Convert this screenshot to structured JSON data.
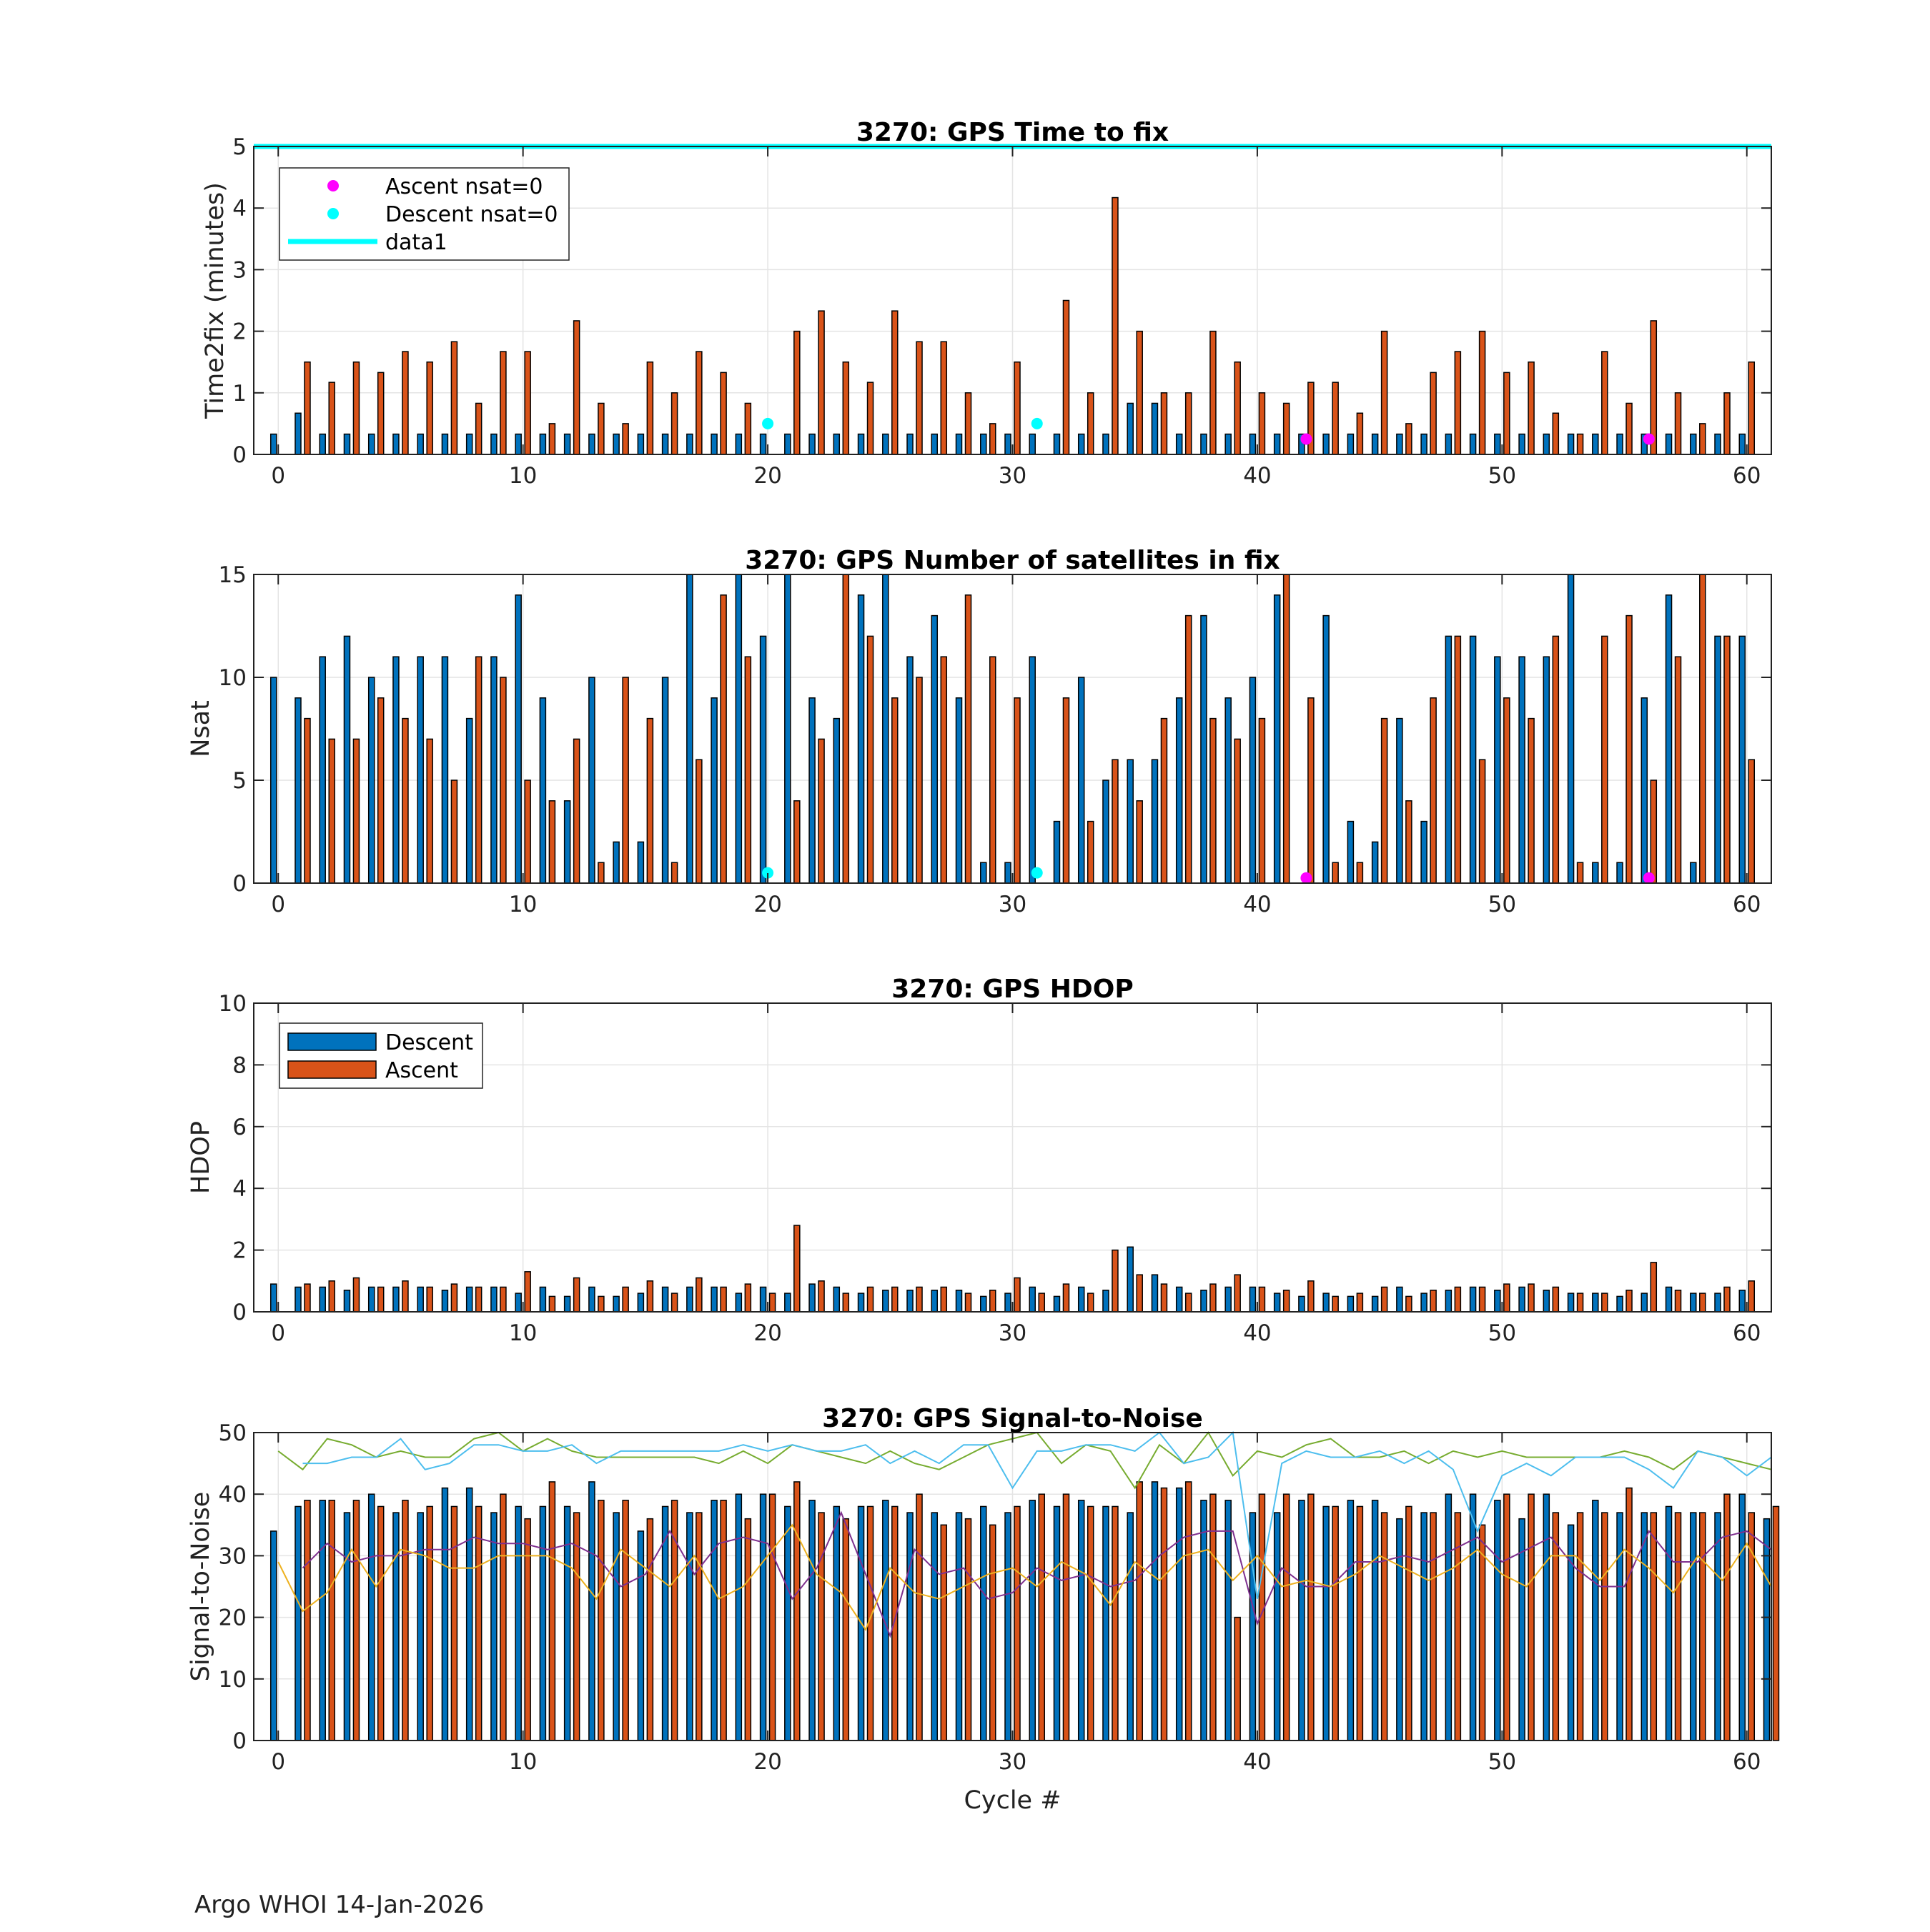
{
  "footer": "Argo WHOI 14-Jan-2026",
  "colors": {
    "descent": "#0072BD",
    "ascent": "#D95319",
    "cyan": "#00FFFF",
    "magenta": "#FF00FF",
    "green": "#77AC30",
    "lightblue": "#4DBEEE",
    "purple": "#7E2F8E",
    "yellow": "#EDB120"
  },
  "chart_data": [
    {
      "type": "bar",
      "title": "3270: GPS Time to fix",
      "xlabel": "",
      "ylabel": "Time2fix (minutes)",
      "xlim": [
        -1,
        61
      ],
      "ylim": [
        0,
        5
      ],
      "xticks": [
        0,
        10,
        20,
        30,
        40,
        50,
        60
      ],
      "yticks": [
        0,
        1,
        2,
        3,
        4,
        5
      ],
      "grid": true,
      "legend_position": "top-left",
      "legend": [
        "Ascent nsat=0",
        "Descent nsat=0",
        "data1"
      ],
      "hline": {
        "name": "data1",
        "y": 5
      },
      "series": [
        {
          "name": "Descent",
          "values": [
            0.33,
            0.67,
            0.33,
            0.33,
            0.33,
            0.33,
            0.33,
            0.33,
            0.33,
            0.33,
            0.33,
            0.33,
            0.33,
            0.33,
            0.33,
            0.33,
            0.33,
            0.33,
            0.33,
            0.33,
            0.33,
            0.33,
            0.33,
            0.33,
            0.33,
            0.33,
            0.33,
            0.33,
            0.33,
            0.33,
            0.33,
            0.33,
            0.33,
            0.33,
            0.33,
            0.83,
            0.83,
            0.33,
            0.33,
            0.33,
            0.33,
            0.33,
            0.33,
            0.33,
            0.33,
            0.33,
            0.33,
            0.33,
            0.33,
            0.33,
            0.33,
            0.33,
            0.33,
            0.33,
            0.33,
            0.33,
            0.33,
            0.33,
            0.33,
            0.33,
            0.33
          ]
        },
        {
          "name": "Ascent",
          "values": [
            null,
            1.5,
            1.17,
            1.5,
            1.33,
            1.67,
            1.5,
            1.83,
            0.83,
            1.67,
            1.67,
            0.5,
            2.17,
            0.83,
            0.5,
            1.5,
            1.0,
            1.67,
            1.33,
            0.83,
            null,
            2.0,
            2.33,
            1.5,
            1.17,
            2.33,
            1.83,
            1.83,
            1.0,
            0.5,
            1.5,
            null,
            2.5,
            1.0,
            4.17,
            2.0,
            1.0,
            1.0,
            2.0,
            1.5,
            1.0,
            0.83,
            1.17,
            1.17,
            0.67,
            2.0,
            0.5,
            1.33,
            1.67,
            2.0,
            1.33,
            1.5,
            0.67,
            0.33,
            1.67,
            0.83,
            2.17,
            1.0,
            0.5,
            1.0,
            1.5
          ]
        }
      ],
      "markers": [
        {
          "name": "Descent nsat=0",
          "points": [
            [
              20,
              0.5
            ],
            [
              31,
              0.5
            ]
          ]
        },
        {
          "name": "Ascent nsat=0",
          "points": [
            [
              42,
              0.25
            ],
            [
              56,
              0.25
            ]
          ]
        }
      ]
    },
    {
      "type": "bar",
      "title": "3270: GPS Number of satellites in fix",
      "xlabel": "",
      "ylabel": "Nsat",
      "xlim": [
        -1,
        61
      ],
      "ylim": [
        0,
        15
      ],
      "xticks": [
        0,
        10,
        20,
        30,
        40,
        50,
        60
      ],
      "yticks": [
        0,
        5,
        10,
        15
      ],
      "grid": true,
      "series": [
        {
          "name": "Descent",
          "values": [
            10,
            9,
            11,
            12,
            10,
            11,
            11,
            11,
            8,
            11,
            14,
            9,
            4,
            10,
            2,
            2,
            10,
            15,
            9,
            15,
            12,
            15,
            9,
            8,
            14,
            15,
            11,
            13,
            9,
            1,
            1,
            11,
            3,
            10,
            5,
            6,
            6,
            9,
            13,
            9,
            10,
            14,
            0,
            13,
            3,
            2,
            8,
            3,
            12,
            12,
            11,
            11,
            11,
            15,
            1,
            1,
            9,
            14,
            1,
            12,
            12
          ]
        },
        {
          "name": "Ascent",
          "values": [
            null,
            8,
            7,
            7,
            9,
            8,
            7,
            5,
            11,
            10,
            5,
            4,
            7,
            1,
            10,
            8,
            1,
            6,
            14,
            11,
            0,
            4,
            7,
            15,
            12,
            9,
            10,
            11,
            14,
            11,
            9,
            0,
            9,
            3,
            6,
            4,
            8,
            13,
            8,
            7,
            8,
            15,
            9,
            1,
            1,
            8,
            4,
            9,
            12,
            6,
            9,
            8,
            12,
            1,
            12,
            13,
            5,
            11,
            15,
            12,
            6
          ]
        }
      ],
      "markers": [
        {
          "name": "Descent nsat=0",
          "points": [
            [
              20,
              0.5
            ],
            [
              31,
              0.5
            ]
          ]
        },
        {
          "name": "Ascent nsat=0",
          "points": [
            [
              42,
              0.25
            ],
            [
              56,
              0.25
            ]
          ]
        }
      ]
    },
    {
      "type": "bar",
      "title": "3270: GPS HDOP",
      "xlabel": "",
      "ylabel": "HDOP",
      "xlim": [
        -1,
        61
      ],
      "ylim": [
        0,
        10
      ],
      "xticks": [
        0,
        10,
        20,
        30,
        40,
        50,
        60
      ],
      "yticks": [
        0,
        2,
        4,
        6,
        8,
        10
      ],
      "grid": true,
      "legend_position": "top-left",
      "legend": [
        "Descent",
        "Ascent"
      ],
      "series": [
        {
          "name": "Descent",
          "values": [
            0.9,
            0.8,
            0.8,
            0.7,
            0.8,
            0.8,
            0.8,
            0.7,
            0.8,
            0.8,
            0.6,
            0.8,
            0.5,
            0.8,
            0.5,
            0.6,
            0.8,
            0.8,
            0.8,
            0.6,
            0.8,
            0.6,
            0.9,
            0.8,
            0.6,
            0.7,
            0.7,
            0.7,
            0.7,
            0.5,
            0.6,
            0.8,
            0.5,
            0.8,
            0.7,
            2.1,
            1.2,
            0.8,
            0.7,
            0.8,
            0.8,
            0.6,
            0.5,
            0.6,
            0.5,
            0.5,
            0.8,
            0.6,
            0.7,
            0.8,
            0.7,
            0.8,
            0.7,
            0.6,
            0.6,
            0.5,
            0.6,
            0.8,
            0.6,
            0.6,
            0.7
          ]
        },
        {
          "name": "Ascent",
          "values": [
            null,
            0.9,
            1.0,
            1.1,
            0.8,
            1.0,
            0.8,
            0.9,
            0.8,
            0.8,
            1.3,
            0.5,
            1.1,
            0.5,
            0.8,
            1.0,
            0.6,
            1.1,
            0.8,
            0.9,
            0.6,
            2.8,
            1.0,
            0.6,
            0.8,
            0.8,
            0.8,
            0.8,
            0.6,
            0.7,
            1.1,
            0.6,
            0.9,
            0.6,
            2.0,
            1.2,
            0.9,
            0.6,
            0.9,
            1.2,
            0.8,
            0.7,
            1.0,
            0.5,
            0.6,
            0.8,
            0.5,
            0.7,
            0.8,
            0.8,
            0.9,
            0.9,
            0.8,
            0.6,
            0.6,
            0.7,
            1.6,
            0.7,
            0.6,
            0.8,
            1.0
          ]
        }
      ]
    },
    {
      "type": "bar",
      "title": "3270: GPS Signal-to-Noise",
      "xlabel": "Cycle #",
      "ylabel": "Signal-to-Noise",
      "xlim": [
        -1,
        61
      ],
      "ylim": [
        0,
        50
      ],
      "xticks": [
        0,
        10,
        20,
        30,
        40,
        50,
        60
      ],
      "yticks": [
        0,
        10,
        20,
        30,
        40,
        50
      ],
      "grid": true,
      "series": [
        {
          "name": "Descent",
          "values": [
            34,
            38,
            39,
            37,
            40,
            37,
            37,
            41,
            41,
            37,
            38,
            38,
            38,
            42,
            37,
            34,
            38,
            37,
            39,
            40,
            40,
            38,
            39,
            38,
            38,
            39,
            37,
            37,
            37,
            38,
            37,
            39,
            38,
            39,
            38,
            37,
            42,
            41,
            39,
            39,
            37,
            37,
            39,
            38,
            39,
            39,
            36,
            37,
            40,
            40,
            39,
            36,
            40,
            35,
            39,
            37,
            37,
            38,
            37,
            37,
            40,
            36
          ]
        },
        {
          "name": "Ascent",
          "values": [
            null,
            39,
            39,
            39,
            38,
            39,
            38,
            38,
            38,
            40,
            36,
            42,
            37,
            39,
            39,
            36,
            39,
            37,
            39,
            36,
            40,
            42,
            37,
            36,
            38,
            38,
            40,
            35,
            36,
            35,
            38,
            40,
            40,
            38,
            38,
            42,
            41,
            42,
            40,
            20,
            40,
            40,
            40,
            38,
            38,
            37,
            38,
            37,
            37,
            35,
            40,
            40,
            37,
            37,
            37,
            41,
            37,
            37,
            37,
            40,
            37,
            38
          ]
        }
      ],
      "lines": [
        {
          "name": "green",
          "values": [
            47,
            44,
            49,
            48,
            46,
            47,
            46,
            46,
            49,
            50,
            47,
            49,
            47,
            46,
            46,
            46,
            46,
            46,
            45,
            47,
            45,
            48,
            47,
            46,
            45,
            47,
            45,
            44,
            46,
            48,
            49,
            50,
            45,
            48,
            47,
            41,
            48,
            45,
            50,
            43,
            47,
            46,
            48,
            49,
            46,
            46,
            47,
            45,
            47,
            46,
            47,
            46,
            46,
            46,
            46,
            47,
            46,
            44,
            47,
            46,
            45,
            44
          ]
        },
        {
          "name": "lightblue",
          "values": [
            null,
            45,
            45,
            46,
            46,
            49,
            44,
            45,
            48,
            48,
            47,
            47,
            48,
            45,
            47,
            47,
            47,
            47,
            47,
            48,
            47,
            48,
            47,
            47,
            48,
            45,
            47,
            45,
            48,
            48,
            41,
            47,
            47,
            48,
            48,
            47,
            50,
            45,
            46,
            50,
            23,
            45,
            47,
            46,
            46,
            47,
            45,
            47,
            44,
            34,
            43,
            45,
            43,
            46,
            46,
            46,
            44,
            41,
            47,
            46,
            43,
            46
          ]
        },
        {
          "name": "purple",
          "values": [
            null,
            28,
            32,
            29,
            30,
            30,
            31,
            31,
            33,
            32,
            32,
            31,
            32,
            30,
            25,
            27,
            34,
            27,
            32,
            33,
            32,
            23,
            28,
            37,
            27,
            17,
            31,
            27,
            28,
            23,
            24,
            28,
            26,
            27,
            25,
            26,
            30,
            33,
            34,
            34,
            19,
            28,
            25,
            25,
            29,
            29,
            30,
            29,
            31,
            33,
            29,
            31,
            33,
            28,
            25,
            25,
            34,
            29,
            29,
            33,
            34,
            31
          ]
        },
        {
          "name": "yellow",
          "values": [
            29,
            21,
            24,
            31,
            25,
            31,
            30,
            28,
            28,
            30,
            30,
            30,
            28,
            23,
            31,
            28,
            25,
            30,
            23,
            25,
            30,
            35,
            27,
            24,
            18,
            28,
            24,
            23,
            25,
            27,
            28,
            25,
            29,
            27,
            22,
            29,
            26,
            30,
            31,
            26,
            30,
            25,
            26,
            25,
            27,
            30,
            28,
            26,
            28,
            31,
            27,
            25,
            30,
            30,
            26,
            31,
            28,
            24,
            30,
            26,
            32,
            25
          ]
        }
      ]
    }
  ]
}
